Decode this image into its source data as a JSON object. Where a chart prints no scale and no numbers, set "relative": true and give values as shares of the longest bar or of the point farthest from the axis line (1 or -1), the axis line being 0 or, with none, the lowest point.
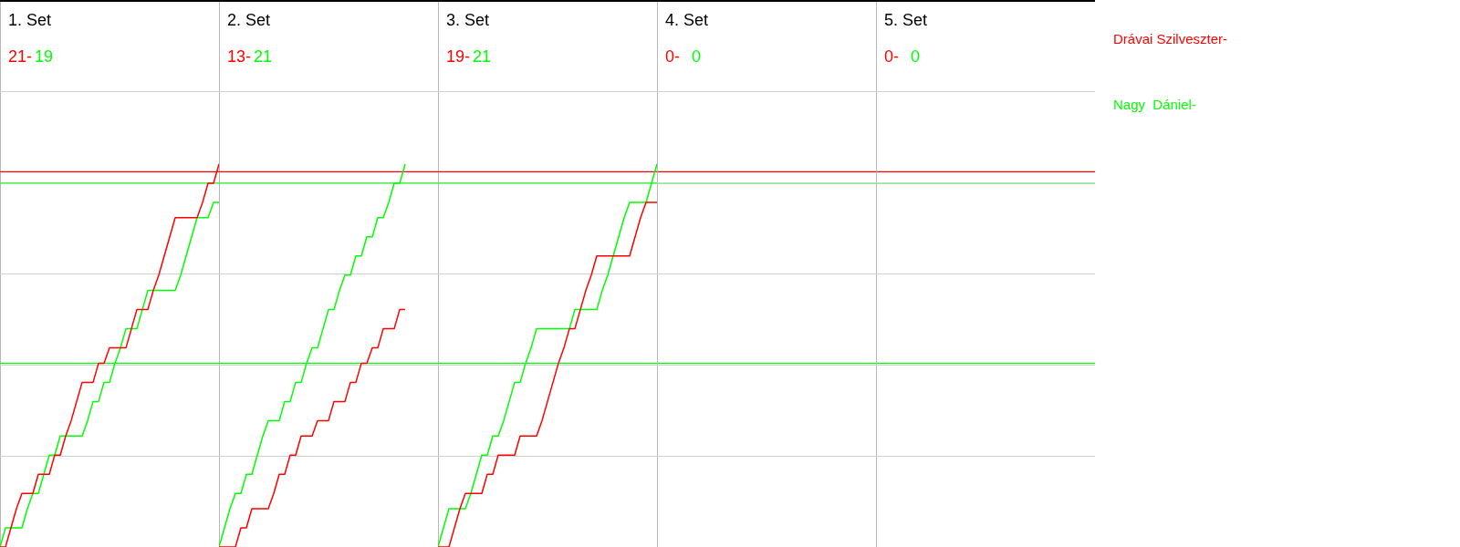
{
  "chart_data": [
    {
      "type": "line",
      "title": "1. Set",
      "annotations": [
        "21-",
        "19"
      ],
      "relative": true,
      "grid": "y",
      "categories": [
        null,
        null,
        null,
        null,
        null,
        null,
        null,
        null,
        null,
        null,
        null,
        null,
        null,
        null,
        null,
        null,
        null,
        null,
        null,
        null,
        null,
        null,
        null,
        null,
        null,
        null,
        null,
        null,
        null,
        null,
        null,
        null,
        null,
        null,
        null,
        null,
        null,
        null,
        null,
        null,
        null
      ],
      "ref_lines": [
        {
          "axis": "y",
          "value": 0.98,
          "color": "#ff0000"
        },
        {
          "axis": "y",
          "value": 0.95,
          "color": "#00ff00"
        },
        {
          "axis": "y",
          "value": 0.48,
          "color": "#00ff00"
        }
      ],
      "series": [
        {
          "name": "Drávai Szilveszter-",
          "color": "#ff0000",
          "values": [
            0,
            0,
            0.05,
            0.1,
            0.14,
            0.14,
            0.14,
            0.19,
            0.19,
            0.19,
            0.24,
            0.24,
            0.29,
            0.33,
            0.38,
            0.43,
            0.43,
            0.43,
            0.48,
            0.48,
            0.52,
            0.52,
            0.52,
            0.52,
            0.57,
            0.62,
            0.62,
            0.62,
            0.67,
            0.71,
            0.76,
            0.81,
            0.86,
            0.86,
            0.86,
            0.86,
            0.86,
            0.9,
            0.95,
            0.95,
            1
          ]
        },
        {
          "name": "Nagy  Dániel-",
          "color": "#00ff00",
          "values": [
            0,
            0.05,
            0.05,
            0.05,
            0.05,
            0.1,
            0.14,
            0.14,
            0.19,
            0.24,
            0.24,
            0.29,
            0.29,
            0.29,
            0.29,
            0.29,
            0.33,
            0.38,
            0.38,
            0.43,
            0.43,
            0.48,
            0.52,
            0.57,
            0.57,
            0.57,
            0.62,
            0.67,
            0.67,
            0.67,
            0.67,
            0.67,
            0.67,
            0.71,
            0.76,
            0.81,
            0.86,
            0.86,
            0.86,
            0.9,
            0.9
          ]
        }
      ]
    },
    {
      "type": "line",
      "title": "2. Set",
      "annotations": [
        "13-",
        "21"
      ],
      "relative": true,
      "grid": "y",
      "categories": [
        null,
        null,
        null,
        null,
        null,
        null,
        null,
        null,
        null,
        null,
        null,
        null,
        null,
        null,
        null,
        null,
        null,
        null,
        null,
        null,
        null,
        null,
        null,
        null,
        null,
        null,
        null,
        null,
        null,
        null,
        null,
        null,
        null,
        null,
        null,
        null,
        null,
        null,
        null,
        null,
        null
      ],
      "ref_lines": [
        {
          "axis": "y",
          "value": 0.98,
          "color": "#ff0000"
        },
        {
          "axis": "y",
          "value": 0.95,
          "color": "#00ff00"
        },
        {
          "axis": "y",
          "value": 0.48,
          "color": "#00ff00"
        }
      ],
      "series": [
        {
          "color": "#ff0000",
          "values": [
            0,
            0,
            0,
            0,
            0.05,
            0.05,
            0.1,
            0.1,
            0.1,
            0.1,
            0.14,
            0.19,
            0.19,
            0.24,
            0.24,
            0.29,
            0.29,
            0.29,
            0.33,
            0.33,
            0.33,
            0.38,
            0.38,
            0.38,
            0.43,
            0.43,
            0.48,
            0.48,
            0.52,
            0.52,
            0.57,
            0.57,
            0.57,
            0.62,
            0.62,
            null,
            null,
            null,
            null,
            null,
            null
          ]
        },
        {
          "color": "#00ff00",
          "values": [
            0,
            0.05,
            0.1,
            0.14,
            0.14,
            0.19,
            0.19,
            0.24,
            0.29,
            0.33,
            0.33,
            0.33,
            0.38,
            0.38,
            0.43,
            0.43,
            0.48,
            0.52,
            0.52,
            0.57,
            0.62,
            0.62,
            0.67,
            0.71,
            0.71,
            0.76,
            0.76,
            0.81,
            0.81,
            0.86,
            0.86,
            0.9,
            0.95,
            0.95,
            1,
            null,
            null,
            null,
            null,
            null,
            null
          ]
        }
      ]
    },
    {
      "type": "line",
      "title": "3. Set",
      "annotations": [
        "19-",
        "21"
      ],
      "relative": true,
      "grid": "y",
      "categories": [
        null,
        null,
        null,
        null,
        null,
        null,
        null,
        null,
        null,
        null,
        null,
        null,
        null,
        null,
        null,
        null,
        null,
        null,
        null,
        null,
        null,
        null,
        null,
        null,
        null,
        null,
        null,
        null,
        null,
        null,
        null,
        null,
        null,
        null,
        null,
        null,
        null,
        null,
        null,
        null,
        null
      ],
      "ref_lines": [
        {
          "axis": "y",
          "value": 0.98,
          "color": "#ff0000"
        },
        {
          "axis": "y",
          "value": 0.95,
          "color": "#00ff00"
        },
        {
          "axis": "y",
          "value": 0.48,
          "color": "#00ff00"
        }
      ],
      "series": [
        {
          "color": "#ff0000",
          "values": [
            0,
            0,
            0,
            0.05,
            0.1,
            0.14,
            0.14,
            0.14,
            0.14,
            0.19,
            0.19,
            0.24,
            0.24,
            0.24,
            0.24,
            0.29,
            0.29,
            0.29,
            0.29,
            0.33,
            0.38,
            0.43,
            0.48,
            0.52,
            0.57,
            0.57,
            0.62,
            0.67,
            0.71,
            0.76,
            0.76,
            0.76,
            0.76,
            0.76,
            0.76,
            0.76,
            0.81,
            0.86,
            0.9,
            0.9,
            0.9
          ]
        },
        {
          "color": "#00ff00",
          "values": [
            0,
            0.05,
            0.1,
            0.1,
            0.1,
            0.1,
            0.14,
            0.19,
            0.24,
            0.24,
            0.29,
            0.29,
            0.33,
            0.38,
            0.43,
            0.43,
            0.48,
            0.52,
            0.57,
            0.57,
            0.57,
            0.57,
            0.57,
            0.57,
            0.57,
            0.62,
            0.62,
            0.62,
            0.62,
            0.62,
            0.67,
            0.71,
            0.76,
            0.81,
            0.86,
            0.9,
            0.9,
            0.9,
            0.9,
            0.95,
            1
          ]
        }
      ]
    },
    {
      "type": "other",
      "title": "4. Set",
      "annotations": [
        "0-",
        "0"
      ],
      "colors": [
        "#ff0000",
        "#00ff00"
      ]
    },
    {
      "type": "other",
      "title": "5. Set",
      "annotations": [
        "0-",
        "0"
      ],
      "colors": [
        "#ff0000",
        "#00ff00"
      ]
    }
  ]
}
